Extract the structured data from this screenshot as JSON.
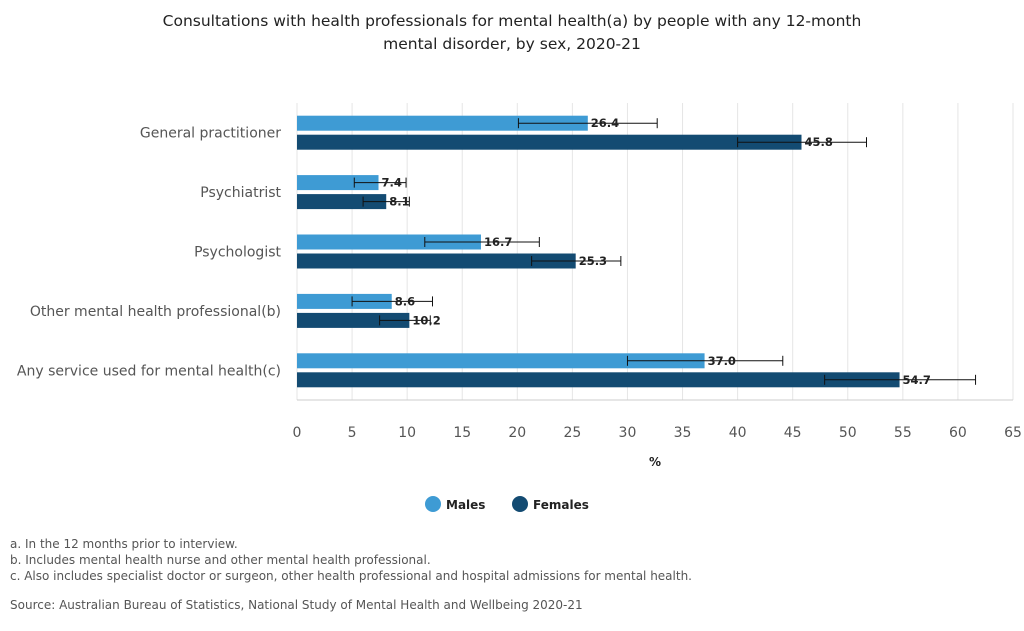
{
  "chart_data": {
    "type": "bar",
    "orientation": "horizontal",
    "title": "Consultations with health professionals for mental health(a) by people with any 12-month mental disorder, by sex, 2020-21",
    "categories": [
      "General practitioner",
      "Psychiatrist",
      "Psychologist",
      "Other mental health professional(b)",
      "Any service used for mental health(c)"
    ],
    "series": [
      {
        "name": "Males",
        "color": "#3e9bd4",
        "values": [
          26.4,
          7.4,
          16.7,
          8.6,
          37.0
        ],
        "labels": [
          "26.4",
          "7.4",
          "16.7",
          "8.6",
          "37.0"
        ],
        "error_low": [
          20.1,
          5.2,
          11.6,
          5.0,
          30.0
        ],
        "error_high": [
          32.7,
          9.9,
          22.0,
          12.3,
          44.1
        ]
      },
      {
        "name": "Females",
        "color": "#134b72",
        "values": [
          45.8,
          8.1,
          25.3,
          10.2,
          54.7
        ],
        "labels": [
          "45.8",
          "8.1",
          "25.3",
          "10.2",
          "54.7"
        ],
        "error_low": [
          40.0,
          6.0,
          21.3,
          7.5,
          47.9
        ],
        "error_high": [
          51.7,
          10.2,
          29.4,
          12.1,
          61.6
        ]
      }
    ],
    "xlabel": "%",
    "xlim": [
      0,
      65
    ],
    "xticks": [
      0,
      5,
      10,
      15,
      20,
      25,
      30,
      35,
      40,
      45,
      50,
      55,
      60,
      65
    ],
    "grid": true,
    "legend": "bottom-center"
  },
  "footnotes": [
    "a. In the 12 months prior to interview.",
    "b. Includes mental health nurse and other mental health professional.",
    "c. Also includes specialist doctor or surgeon, other health professional and hospital admissions for mental health."
  ],
  "source": "Source: Australian Bureau of Statistics, National Study of Mental Health and Wellbeing 2020-21"
}
